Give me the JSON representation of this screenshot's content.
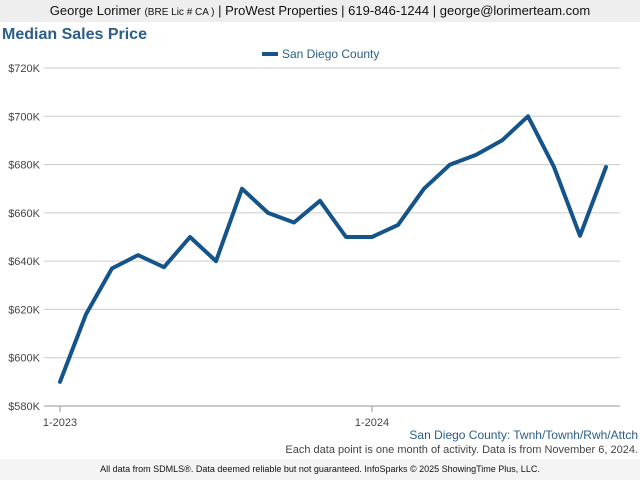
{
  "header": {
    "name": "George Lorimer",
    "license": "(BRE Lic # CA )",
    "rest": " | ProWest Properties | 619-846-1244 | george@lorimerteam.com"
  },
  "chart_data": {
    "type": "line",
    "title": "Median Sales Price",
    "series": [
      {
        "name": "San Diego County",
        "color": "#15548a",
        "values": [
          590000,
          618000,
          637000,
          642500,
          637500,
          650000,
          640000,
          670000,
          660000,
          656000,
          665000,
          650000,
          650000,
          655000,
          670000,
          680000,
          684000,
          690000,
          700000,
          679000,
          650500,
          679000
        ]
      }
    ],
    "x_tick_labels": [
      {
        "index": 0,
        "label": "1-2023"
      },
      {
        "index": 12,
        "label": "1-2024"
      }
    ],
    "ylim": [
      580000,
      720000
    ],
    "y_ticks": [
      {
        "value": 580000,
        "label": "$580K"
      },
      {
        "value": 600000,
        "label": "$600K"
      },
      {
        "value": 620000,
        "label": "$620K"
      },
      {
        "value": 640000,
        "label": "$640K"
      },
      {
        "value": 660000,
        "label": "$660K"
      },
      {
        "value": 680000,
        "label": "$680K"
      },
      {
        "value": 700000,
        "label": "$700K"
      },
      {
        "value": 720000,
        "label": "$720K"
      }
    ],
    "grid": true,
    "legend_position": "top-center"
  },
  "filter_label": "San Diego County: Twnh/Townh/Rwh/Attch",
  "data_note": "Each data point is one month of activity. Data is from November 6, 2024.",
  "footer": "All data from SDMLS®. Data deemed reliable but not guaranteed. InfoSparks © 2025 ShowingTime Plus, LLC."
}
